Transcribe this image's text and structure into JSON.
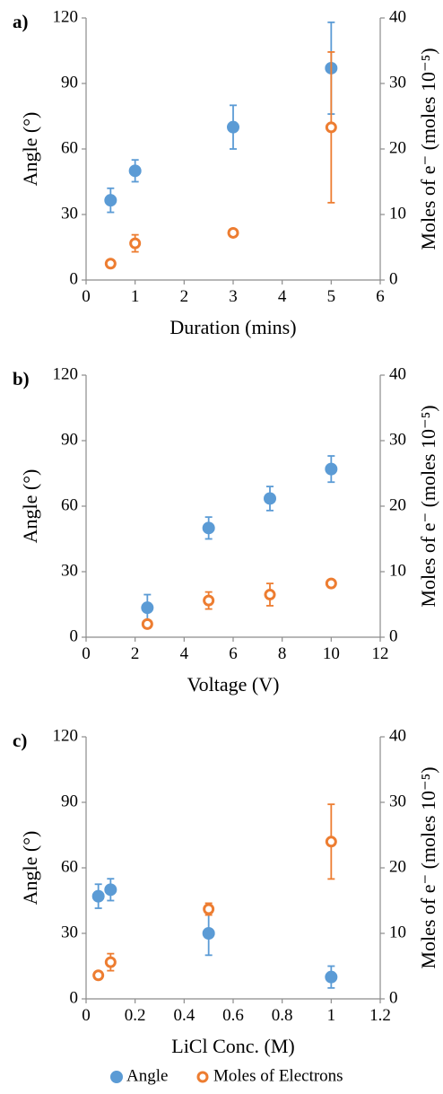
{
  "colors": {
    "angle": "#5B9BD5",
    "electrons": "#ED7D31",
    "axis": "#8c8c8c"
  },
  "legend": {
    "items": [
      {
        "label": "Angle",
        "marker": "filled-circle"
      },
      {
        "label": "Moles of Electrons",
        "marker": "open-circle"
      }
    ],
    "placement": "bottom-center"
  },
  "chart_data": [
    {
      "panel": "a)",
      "type": "scatter",
      "xlabel": "Duration (mins)",
      "ylabel": "Angle (°)",
      "y2label": "Moles of e⁻ (moles 10⁻⁵)",
      "xlim": [
        0,
        6
      ],
      "xticks": [
        0,
        1,
        2,
        3,
        4,
        5,
        6
      ],
      "ylim": [
        0,
        120
      ],
      "yticks": [
        0,
        30,
        60,
        90,
        120
      ],
      "y2lim": [
        0,
        40
      ],
      "y2ticks": [
        0,
        10,
        20,
        30,
        40
      ],
      "series": [
        {
          "name": "Angle",
          "axis": "left",
          "marker": "filled",
          "x": [
            0.5,
            1,
            3,
            5
          ],
          "y": [
            36.5,
            50,
            70,
            97
          ],
          "err": [
            5.5,
            5,
            10,
            21
          ]
        },
        {
          "name": "Moles of Electrons",
          "axis": "right",
          "marker": "open",
          "x": [
            0.5,
            1,
            3,
            5
          ],
          "y": [
            2.5,
            5.6,
            7.2,
            23.3
          ],
          "err": [
            0.4,
            1.3,
            0.5,
            11.5
          ]
        }
      ]
    },
    {
      "panel": "b)",
      "type": "scatter",
      "xlabel": "Voltage (V)",
      "ylabel": "Angle (°)",
      "y2label": "Moles of e⁻ (moles 10⁻⁵)",
      "xlim": [
        0,
        12
      ],
      "xticks": [
        0,
        2,
        4,
        6,
        8,
        10,
        12
      ],
      "ylim": [
        0,
        120
      ],
      "yticks": [
        0,
        30,
        60,
        90,
        120
      ],
      "y2lim": [
        0,
        40
      ],
      "y2ticks": [
        0,
        10,
        20,
        30,
        40
      ],
      "series": [
        {
          "name": "Angle",
          "axis": "left",
          "marker": "filled",
          "x": [
            2.5,
            5,
            7.5,
            10
          ],
          "y": [
            13.5,
            50,
            63.5,
            77
          ],
          "err": [
            6,
            5,
            5.5,
            6
          ]
        },
        {
          "name": "Moles of Electrons",
          "axis": "right",
          "marker": "open",
          "x": [
            2.5,
            5,
            7.5,
            10
          ],
          "y": [
            2.0,
            5.6,
            6.5,
            8.2
          ],
          "err": [
            0.3,
            1.3,
            1.7,
            0.3
          ]
        }
      ]
    },
    {
      "panel": "c)",
      "type": "scatter",
      "xlabel": "LiCl Conc. (M)",
      "ylabel": "Angle (°)",
      "y2label": "Moles of e⁻ (moles 10⁻⁵)",
      "xlim": [
        0,
        1.2
      ],
      "xticks": [
        0,
        0.2,
        0.4,
        0.6,
        0.8,
        1,
        1.2
      ],
      "ylim": [
        0,
        120
      ],
      "yticks": [
        0,
        30,
        60,
        90,
        120
      ],
      "y2lim": [
        0,
        40
      ],
      "y2ticks": [
        0,
        10,
        20,
        30,
        40
      ],
      "series": [
        {
          "name": "Angle",
          "axis": "left",
          "marker": "filled",
          "x": [
            0.05,
            0.1,
            0.5,
            1
          ],
          "y": [
            47,
            50,
            30,
            10
          ],
          "err": [
            5.5,
            5,
            10,
            5
          ]
        },
        {
          "name": "Moles of Electrons",
          "axis": "right",
          "marker": "open",
          "x": [
            0.05,
            0.1,
            0.5,
            1
          ],
          "y": [
            3.6,
            5.6,
            13.7,
            24
          ],
          "err": [
            0.3,
            1.3,
            0.9,
            5.7
          ]
        }
      ]
    }
  ]
}
